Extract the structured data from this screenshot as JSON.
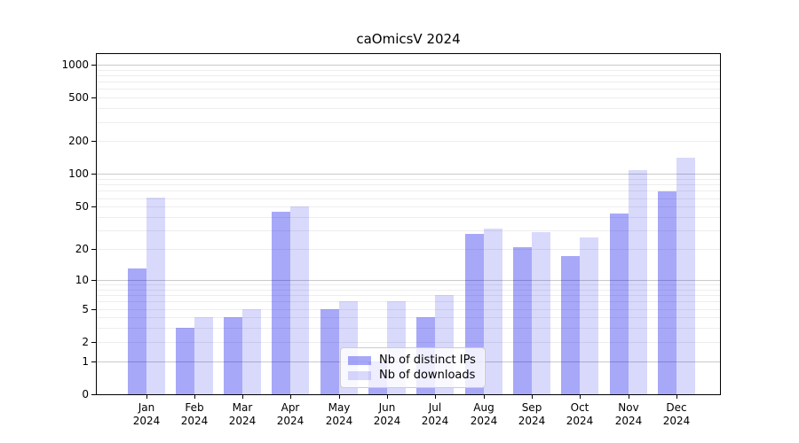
{
  "chart_data": {
    "type": "bar",
    "title": "caOmicsV 2024",
    "year_label": "2024",
    "categories": [
      "Jan",
      "Feb",
      "Mar",
      "Apr",
      "May",
      "Jun",
      "Jul",
      "Aug",
      "Sep",
      "Oct",
      "Nov",
      "Dec"
    ],
    "series": [
      {
        "name": "Nb of distinct IPs",
        "color": "rgba(0,0,235,0.34)",
        "values": [
          13,
          3,
          4,
          45,
          5,
          1,
          4,
          28,
          21,
          17,
          43,
          69
        ]
      },
      {
        "name": "Nb of downloads",
        "color": "rgba(0,0,235,0.15)",
        "values": [
          61,
          4,
          5,
          50,
          6,
          6,
          7,
          31,
          29,
          26,
          108,
          142
        ]
      }
    ],
    "xlabel": "",
    "ylabel": "",
    "y_axis": {
      "scale": "log1p",
      "ticks": [
        1000,
        500,
        200,
        100,
        50,
        20,
        10,
        5,
        2,
        1,
        0
      ],
      "major_gridlines": [
        1,
        10,
        100,
        1000
      ],
      "minor_gridlines": [
        2,
        3,
        4,
        5,
        6,
        7,
        8,
        9,
        20,
        30,
        40,
        50,
        60,
        70,
        80,
        90,
        200,
        300,
        400,
        500,
        600,
        700,
        800,
        900
      ],
      "ylim": [
        0,
        1280
      ]
    },
    "legend": {
      "position": "bottom-center"
    },
    "colors": {
      "bar_distinct_ips": "#a8a8f8",
      "bar_downloads": "#d8d8fb",
      "major_grid": "#c9c9c9",
      "minor_grid": "#ededed",
      "spine": "#000000"
    }
  }
}
